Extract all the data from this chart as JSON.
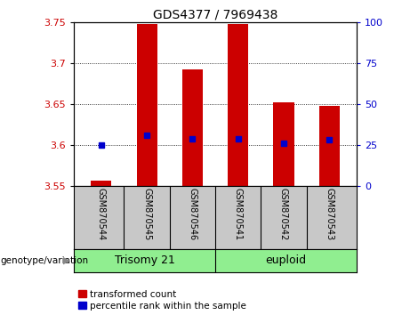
{
  "title": "GDS4377 / 7969438",
  "samples": [
    "GSM870544",
    "GSM870545",
    "GSM870546",
    "GSM870541",
    "GSM870542",
    "GSM870543"
  ],
  "group_labels": [
    "Trisomy 21",
    "euploid"
  ],
  "group_split": 3,
  "bar_values": [
    3.556,
    3.748,
    3.692,
    3.748,
    3.652,
    3.648
  ],
  "bar_base": 3.55,
  "percentile_values": [
    3.6,
    3.612,
    3.607,
    3.607,
    3.602,
    3.606
  ],
  "ylim": [
    3.55,
    3.75
  ],
  "yticks_left": [
    3.55,
    3.6,
    3.65,
    3.7,
    3.75
  ],
  "yticks_right": [
    0,
    25,
    50,
    75,
    100
  ],
  "bar_color": "#cc0000",
  "percentile_color": "#0000cc",
  "bar_width": 0.45,
  "bg_color": "#ffffff",
  "plot_bg": "#ffffff",
  "grid_color": "#000000",
  "label_color_left": "#cc0000",
  "label_color_right": "#0000cc",
  "legend_red_label": "transformed count",
  "legend_blue_label": "percentile rank within the sample",
  "genotype_label": "genotype/variation",
  "sample_bg": "#c8c8c8",
  "group_bg": "#90ee90",
  "title_fontsize": 10,
  "tick_fontsize": 8,
  "sample_fontsize": 7,
  "group_fontsize": 9
}
